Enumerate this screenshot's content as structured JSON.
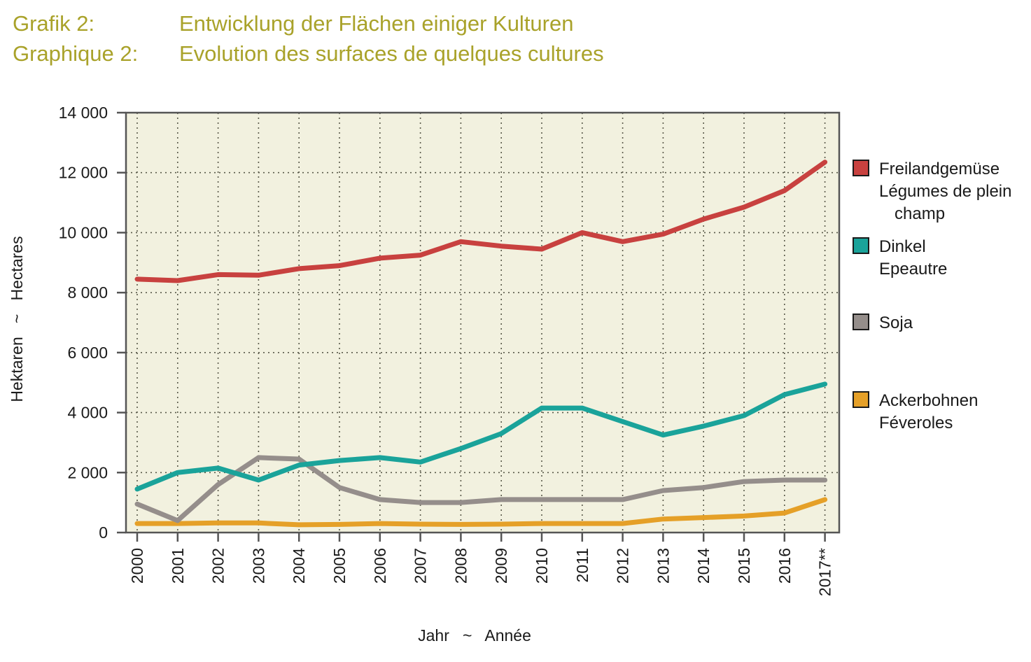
{
  "title": {
    "de_label": "Grafik 2:",
    "de_text": "Entwicklung der Flächen einiger Kulturen",
    "fr_label": "Graphique 2:",
    "fr_text": "Evolution des surfaces de quelques cultures",
    "color": "#a9a22a"
  },
  "chart_data": {
    "type": "line",
    "x": [
      "2000",
      "2001",
      "2002",
      "2003",
      "2004",
      "2005",
      "2006",
      "2007",
      "2008",
      "2009",
      "2010",
      "2011",
      "2012",
      "2013",
      "2014",
      "2015",
      "2016",
      "2017**"
    ],
    "xlabel": "Jahr   ~   Année",
    "ylabel": "Hektaren   ~   Hectares",
    "ylim": [
      0,
      14000
    ],
    "yticks": [
      0,
      2000,
      4000,
      6000,
      8000,
      10000,
      12000,
      14000
    ],
    "ytick_labels": [
      "0",
      "2 000",
      "4 000",
      "6 000",
      "8 000",
      "10 000",
      "12 000",
      "14 000"
    ],
    "grid": true,
    "plot_background": "#f2f1df",
    "legend_position": "right",
    "series": [
      {
        "name": "Freilandgemüse",
        "name_lines": [
          "Freilandgemüse",
          "Légumes de plein",
          "champ"
        ],
        "color": "#c8413f",
        "values": [
          8450,
          8400,
          8600,
          8580,
          8800,
          8900,
          9150,
          9250,
          9700,
          9550,
          9450,
          10000,
          9700,
          9950,
          10450,
          10850,
          11400,
          12350
        ]
      },
      {
        "name": "Dinkel",
        "name_lines": [
          "Dinkel",
          "Epeautre"
        ],
        "color": "#1aa39a",
        "values": [
          1450,
          2000,
          2150,
          1750,
          2250,
          2400,
          2500,
          2350,
          2800,
          3300,
          4150,
          4150,
          3700,
          3250,
          3550,
          3900,
          4600,
          4950
        ]
      },
      {
        "name": "Soja",
        "name_lines": [
          "Soja"
        ],
        "color": "#958e8b",
        "values": [
          950,
          400,
          1600,
          2500,
          2450,
          1500,
          1100,
          1000,
          1000,
          1100,
          1100,
          1100,
          1100,
          1400,
          1500,
          1700,
          1750,
          1750
        ]
      },
      {
        "name": "Ackerbohnen",
        "name_lines": [
          "Ackerbohnen",
          "Féveroles"
        ],
        "color": "#e5a028",
        "values": [
          300,
          300,
          320,
          320,
          260,
          270,
          300,
          280,
          270,
          280,
          300,
          300,
          300,
          450,
          500,
          550,
          650,
          1100
        ]
      }
    ]
  }
}
